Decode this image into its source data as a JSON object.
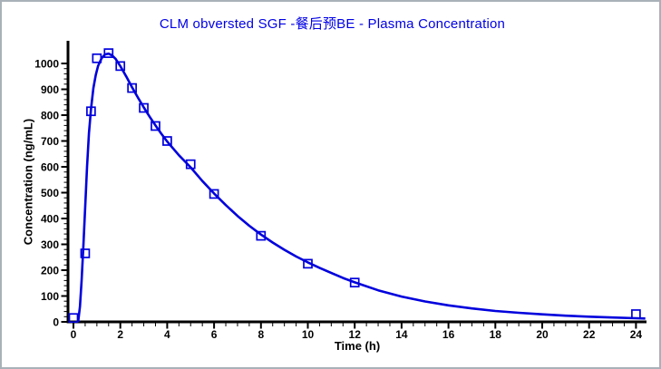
{
  "window": {
    "background": "#ffffff",
    "border_color": "#a9b1b8"
  },
  "chart_data": {
    "type": "scatter",
    "title": "CLM obversted SGF -餐后预BE - Plasma Concentration",
    "title_color": "#0000e6",
    "xlabel": "Time (h)",
    "ylabel": "Concentration (ng/mL)",
    "x_ticks": [
      0,
      2,
      4,
      6,
      8,
      10,
      12,
      14,
      16,
      18,
      20,
      22,
      24
    ],
    "y_ticks": [
      0,
      100,
      200,
      300,
      400,
      500,
      600,
      700,
      800,
      900,
      1000
    ],
    "x_minor_step": 0.5,
    "y_minor_step": 20,
    "xlim": [
      -0.25,
      24.45
    ],
    "ylim": [
      0,
      1088
    ],
    "grid": false,
    "legend_position": "none",
    "accent_color": "#0000dd",
    "axis_color": "#000000",
    "series": [
      {
        "name": "observed-points",
        "type": "scatter",
        "marker": "open-square",
        "color": "#0000dd",
        "x": [
          0,
          0.5,
          0.75,
          1,
          1.5,
          2,
          2.5,
          3,
          3.5,
          4,
          5,
          6,
          8,
          10,
          12,
          24
        ],
        "y": [
          15,
          265,
          815,
          1020,
          1040,
          990,
          905,
          828,
          758,
          700,
          610,
          495,
          333,
          225,
          152,
          30
        ]
      },
      {
        "name": "fitted-curve",
        "type": "line",
        "color": "#0000dd",
        "x": [
          0.2,
          0.28,
          0.35,
          0.42,
          0.5,
          0.58,
          0.66,
          0.75,
          0.85,
          0.95,
          1.05,
          1.2,
          1.35,
          1.5,
          1.65,
          1.8,
          2.0,
          2.25,
          2.5,
          2.75,
          3.0,
          3.25,
          3.5,
          3.75,
          4.0,
          4.5,
          5.0,
          5.5,
          6.0,
          6.5,
          7.0,
          7.5,
          8.0,
          8.5,
          9.0,
          9.5,
          10.0,
          10.5,
          11.0,
          11.5,
          12.0,
          13.0,
          14.0,
          15.0,
          16.0,
          17.0,
          18.0,
          19.0,
          20.0,
          21.0,
          22.0,
          23.0,
          24.0,
          24.4
        ],
        "y": [
          0,
          60,
          160,
          290,
          440,
          600,
          730,
          825,
          905,
          955,
          990,
          1020,
          1035,
          1038,
          1031,
          1018,
          990,
          950,
          908,
          868,
          830,
          794,
          760,
          728,
          698,
          645,
          598,
          545,
          497,
          452,
          410,
          372,
          338,
          307,
          279,
          253,
          230,
          209,
          189,
          170,
          153,
          122,
          98,
          79,
          64,
          52,
          42,
          35,
          29,
          24,
          20,
          17,
          14,
          13
        ]
      }
    ]
  }
}
